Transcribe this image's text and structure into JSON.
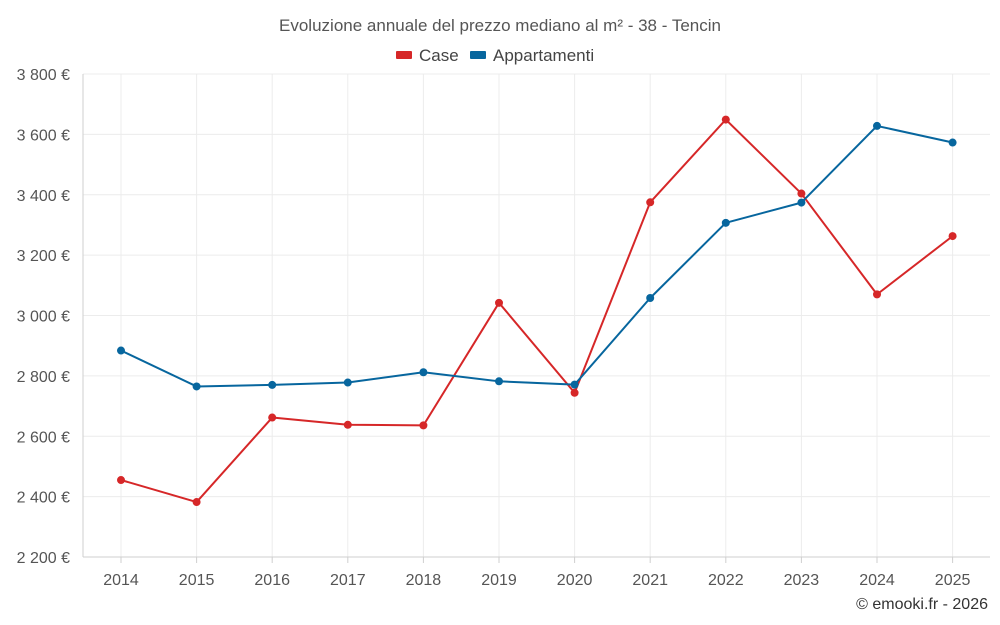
{
  "chart_data": {
    "type": "line",
    "title": "Evoluzione annuale del prezzo mediano al m² - 38 - Tencin",
    "categories": [
      "2014",
      "2015",
      "2016",
      "2017",
      "2018",
      "2019",
      "2020",
      "2021",
      "2022",
      "2023",
      "2024",
      "2025"
    ],
    "y_ticks": [
      2200,
      2400,
      2600,
      2800,
      3000,
      3200,
      3400,
      3600,
      3800
    ],
    "y_tick_labels": [
      "2 200 €",
      "2 400 €",
      "2 600 €",
      "2 800 €",
      "3 000 €",
      "3 200 €",
      "3 400 €",
      "3 600 €",
      "3 800 €"
    ],
    "ylim": [
      2200,
      3800
    ],
    "grid": true,
    "legend_position": "top-center",
    "series": [
      {
        "name": "Case",
        "color": "#d62728",
        "values": [
          2455,
          2382,
          2662,
          2638,
          2636,
          3042,
          2744,
          3375,
          3649,
          3404,
          3070,
          3263
        ]
      },
      {
        "name": "Appartamenti",
        "color": "#07669e",
        "values": [
          2884,
          2765,
          2770,
          2778,
          2812,
          2782,
          2771,
          3058,
          3307,
          3374,
          3628,
          3573
        ]
      }
    ],
    "credit": "© emooki.fr - 2026"
  }
}
